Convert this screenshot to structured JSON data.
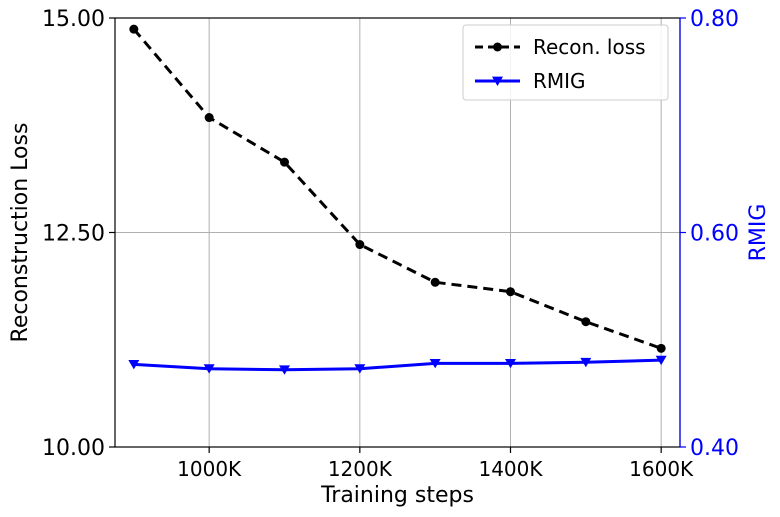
{
  "chart_data": {
    "type": "line",
    "x": [
      900,
      1000,
      1100,
      1200,
      1300,
      1400,
      1500,
      1600
    ],
    "xlabel": "Training steps",
    "x_tick_values": [
      1000,
      1200,
      1400,
      1600
    ],
    "x_tick_labels": [
      "1000K",
      "1200K",
      "1400K",
      "1600K"
    ],
    "xlim": [
      875,
      1625
    ],
    "ylabel_left": "Reconstruction Loss",
    "ylim_left": [
      10.0,
      15.0
    ],
    "y_ticks_left": [
      "10.00",
      "12.50",
      "15.00"
    ],
    "ylabel_right": "RMIG",
    "ylim_right": [
      0.4,
      0.8
    ],
    "y_ticks_right": [
      "0.40",
      "0.60",
      "0.80"
    ],
    "grid": true,
    "legend_position": "top-right",
    "series": [
      {
        "name": "Recon. loss",
        "axis": "left",
        "color": "#000000",
        "line_style": "dashed",
        "marker": "circle",
        "values": [
          14.87,
          13.84,
          13.32,
          12.36,
          11.92,
          11.81,
          11.46,
          11.15
        ]
      },
      {
        "name": "RMIG",
        "axis": "right",
        "color": "#0000ff",
        "line_style": "solid",
        "marker": "triangle-down",
        "values": [
          0.477,
          0.473,
          0.472,
          0.473,
          0.478,
          0.478,
          0.479,
          0.481
        ]
      }
    ]
  }
}
